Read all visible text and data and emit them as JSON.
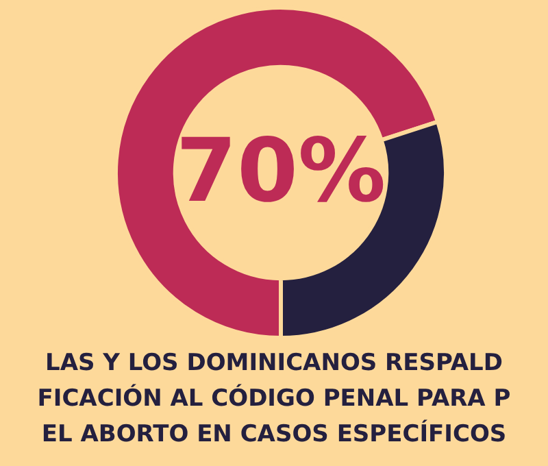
{
  "chart_data": {
    "type": "donut",
    "title": "LAS Y LOS DOMINICANOS RESPALD\nFICACIÓN AL CÓDIGO PENAL PARA P\nEL ABORTO EN CASOS ESPECÍFICOS",
    "categories": [
      null,
      null
    ],
    "values": [
      70,
      30
    ],
    "colors": [
      "#bd2b56",
      "#24203f"
    ],
    "value_labels": [
      "70%",
      null
    ],
    "legend": false
  }
}
